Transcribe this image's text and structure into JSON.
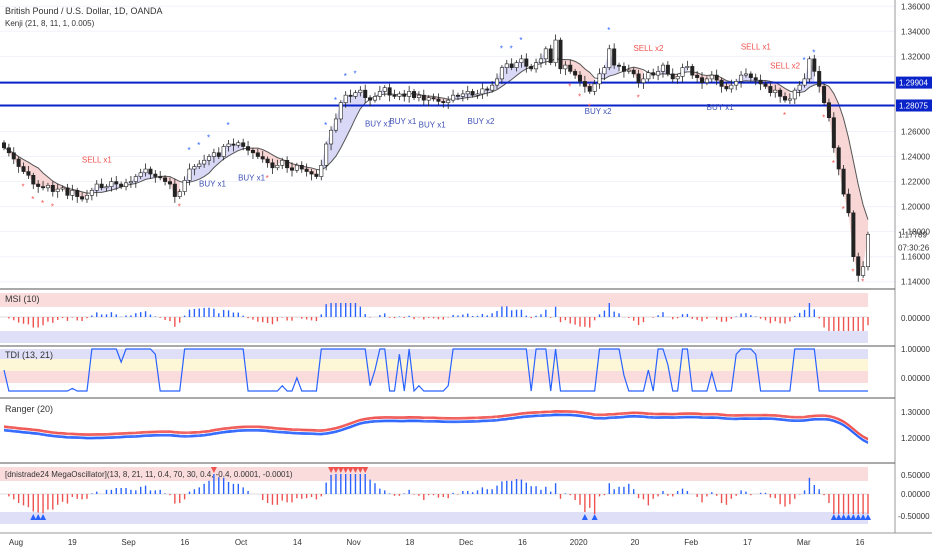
{
  "header": {
    "title": "British Pound / U.S. Dollar, 1D, OANDA",
    "indicator": "Kenji (21, 8, 11, 1, 0.005)"
  },
  "colors": {
    "bull": "#2962ff",
    "bear": "#ef5350",
    "neutral": "#26a69a",
    "line_blue": "#0b24c9",
    "band_up": "#c9c9f3",
    "band_down": "#f6c4c4"
  },
  "price_axis": {
    "ticks": [
      "1.36000",
      "1.34000",
      "1.32000",
      "1.30000",
      "1.28000",
      "1.26000",
      "1.24000",
      "1.22000",
      "1.20000",
      "1.18000",
      "1.16000",
      "1.14000"
    ],
    "hlines": [
      {
        "value": 1.29904,
        "label": "1.29904"
      },
      {
        "value": 1.28075,
        "label": "1.28075"
      }
    ],
    "last_price": "1.17789",
    "countdown": "07:30:26"
  },
  "time_axis": {
    "labels": [
      "Aug",
      "19",
      "Sep",
      "16",
      "Oct",
      "14",
      "Nov",
      "18",
      "Dec",
      "16",
      "2020",
      "20",
      "Feb",
      "17",
      "Mar",
      "16"
    ]
  },
  "signals": [
    {
      "text": "SELL x1",
      "type": "sell"
    },
    {
      "text": "BUY x1",
      "type": "buy"
    },
    {
      "text": "BUY x1",
      "type": "buy"
    },
    {
      "text": "BUY x1",
      "type": "buy"
    },
    {
      "text": "BUY x1",
      "type": "buy"
    },
    {
      "text": "BUY x1",
      "type": "buy"
    },
    {
      "text": "BUY x2",
      "type": "buy"
    },
    {
      "text": "BUY x2",
      "type": "buy"
    },
    {
      "text": "SELL x2",
      "type": "sell"
    },
    {
      "text": "BUY x1",
      "type": "buy"
    },
    {
      "text": "SELL x1",
      "type": "sell"
    },
    {
      "text": "SELL x2",
      "type": "sell"
    }
  ],
  "panes": [
    {
      "name": "MSI (10)",
      "ticks": [
        "0.00000"
      ]
    },
    {
      "name": "TDI (13, 21)",
      "ticks": [
        "1.00000",
        "0.00000"
      ]
    },
    {
      "name": "Ranger (20)",
      "ticks": [
        "1.30000",
        "1.20000"
      ]
    },
    {
      "name": "[dnistrade24 MegaOscillator](13, 8, 21, 11, 0.4, 70, 30, 0.4, -0.4, 0.0001, -0.0001)",
      "ticks": [
        "0.50000",
        "0.00000",
        "-0.50000"
      ]
    }
  ],
  "chart_data": {
    "type": "candlestick",
    "title": "British Pound / U.S. Dollar, 1D, OANDA",
    "ylim": [
      1.135,
      1.365
    ],
    "close": [
      1.247,
      1.243,
      1.238,
      1.232,
      1.228,
      1.225,
      1.218,
      1.216,
      1.215,
      1.217,
      1.212,
      1.214,
      1.215,
      1.209,
      1.213,
      1.208,
      1.206,
      1.209,
      1.213,
      1.218,
      1.215,
      1.216,
      1.22,
      1.218,
      1.216,
      1.219,
      1.22,
      1.224,
      1.227,
      1.23,
      1.226,
      1.224,
      1.223,
      1.22,
      1.218,
      1.208,
      1.212,
      1.221,
      1.23,
      1.232,
      1.234,
      1.237,
      1.24,
      1.243,
      1.24,
      1.248,
      1.25,
      1.249,
      1.251,
      1.248,
      1.245,
      1.243,
      1.24,
      1.238,
      1.235,
      1.231,
      1.233,
      1.237,
      1.231,
      1.229,
      1.233,
      1.23,
      1.228,
      1.226,
      1.224,
      1.233,
      1.25,
      1.261,
      1.27,
      1.283,
      1.289,
      1.288,
      1.291,
      1.293,
      1.287,
      1.285,
      1.288,
      1.292,
      1.295,
      1.289,
      1.288,
      1.29,
      1.288,
      1.292,
      1.287,
      1.289,
      1.285,
      1.287,
      1.286,
      1.284,
      1.283,
      1.285,
      1.289,
      1.288,
      1.29,
      1.292,
      1.289,
      1.29,
      1.294,
      1.293,
      1.297,
      1.302,
      1.311,
      1.314,
      1.311,
      1.315,
      1.318,
      1.312,
      1.31,
      1.315,
      1.318,
      1.326,
      1.315,
      1.333,
      1.31,
      1.313,
      1.308,
      1.305,
      1.3,
      1.296,
      1.292,
      1.298,
      1.306,
      1.311,
      1.326,
      1.313,
      1.312,
      1.308,
      1.309,
      1.306,
      1.299,
      1.302,
      1.307,
      1.305,
      1.308,
      1.313,
      1.306,
      1.302,
      1.304,
      1.311,
      1.312,
      1.305,
      1.303,
      1.299,
      1.302,
      1.305,
      1.301,
      1.296,
      1.294,
      1.297,
      1.3,
      1.305,
      1.306,
      1.303,
      1.301,
      1.298,
      1.296,
      1.291,
      1.293,
      1.288,
      1.285,
      1.286,
      1.293,
      1.297,
      1.302,
      1.318,
      1.308,
      1.296,
      1.283,
      1.271,
      1.247,
      1.23,
      1.21,
      1.195,
      1.16,
      1.145,
      1.152,
      1.1779
    ]
  }
}
